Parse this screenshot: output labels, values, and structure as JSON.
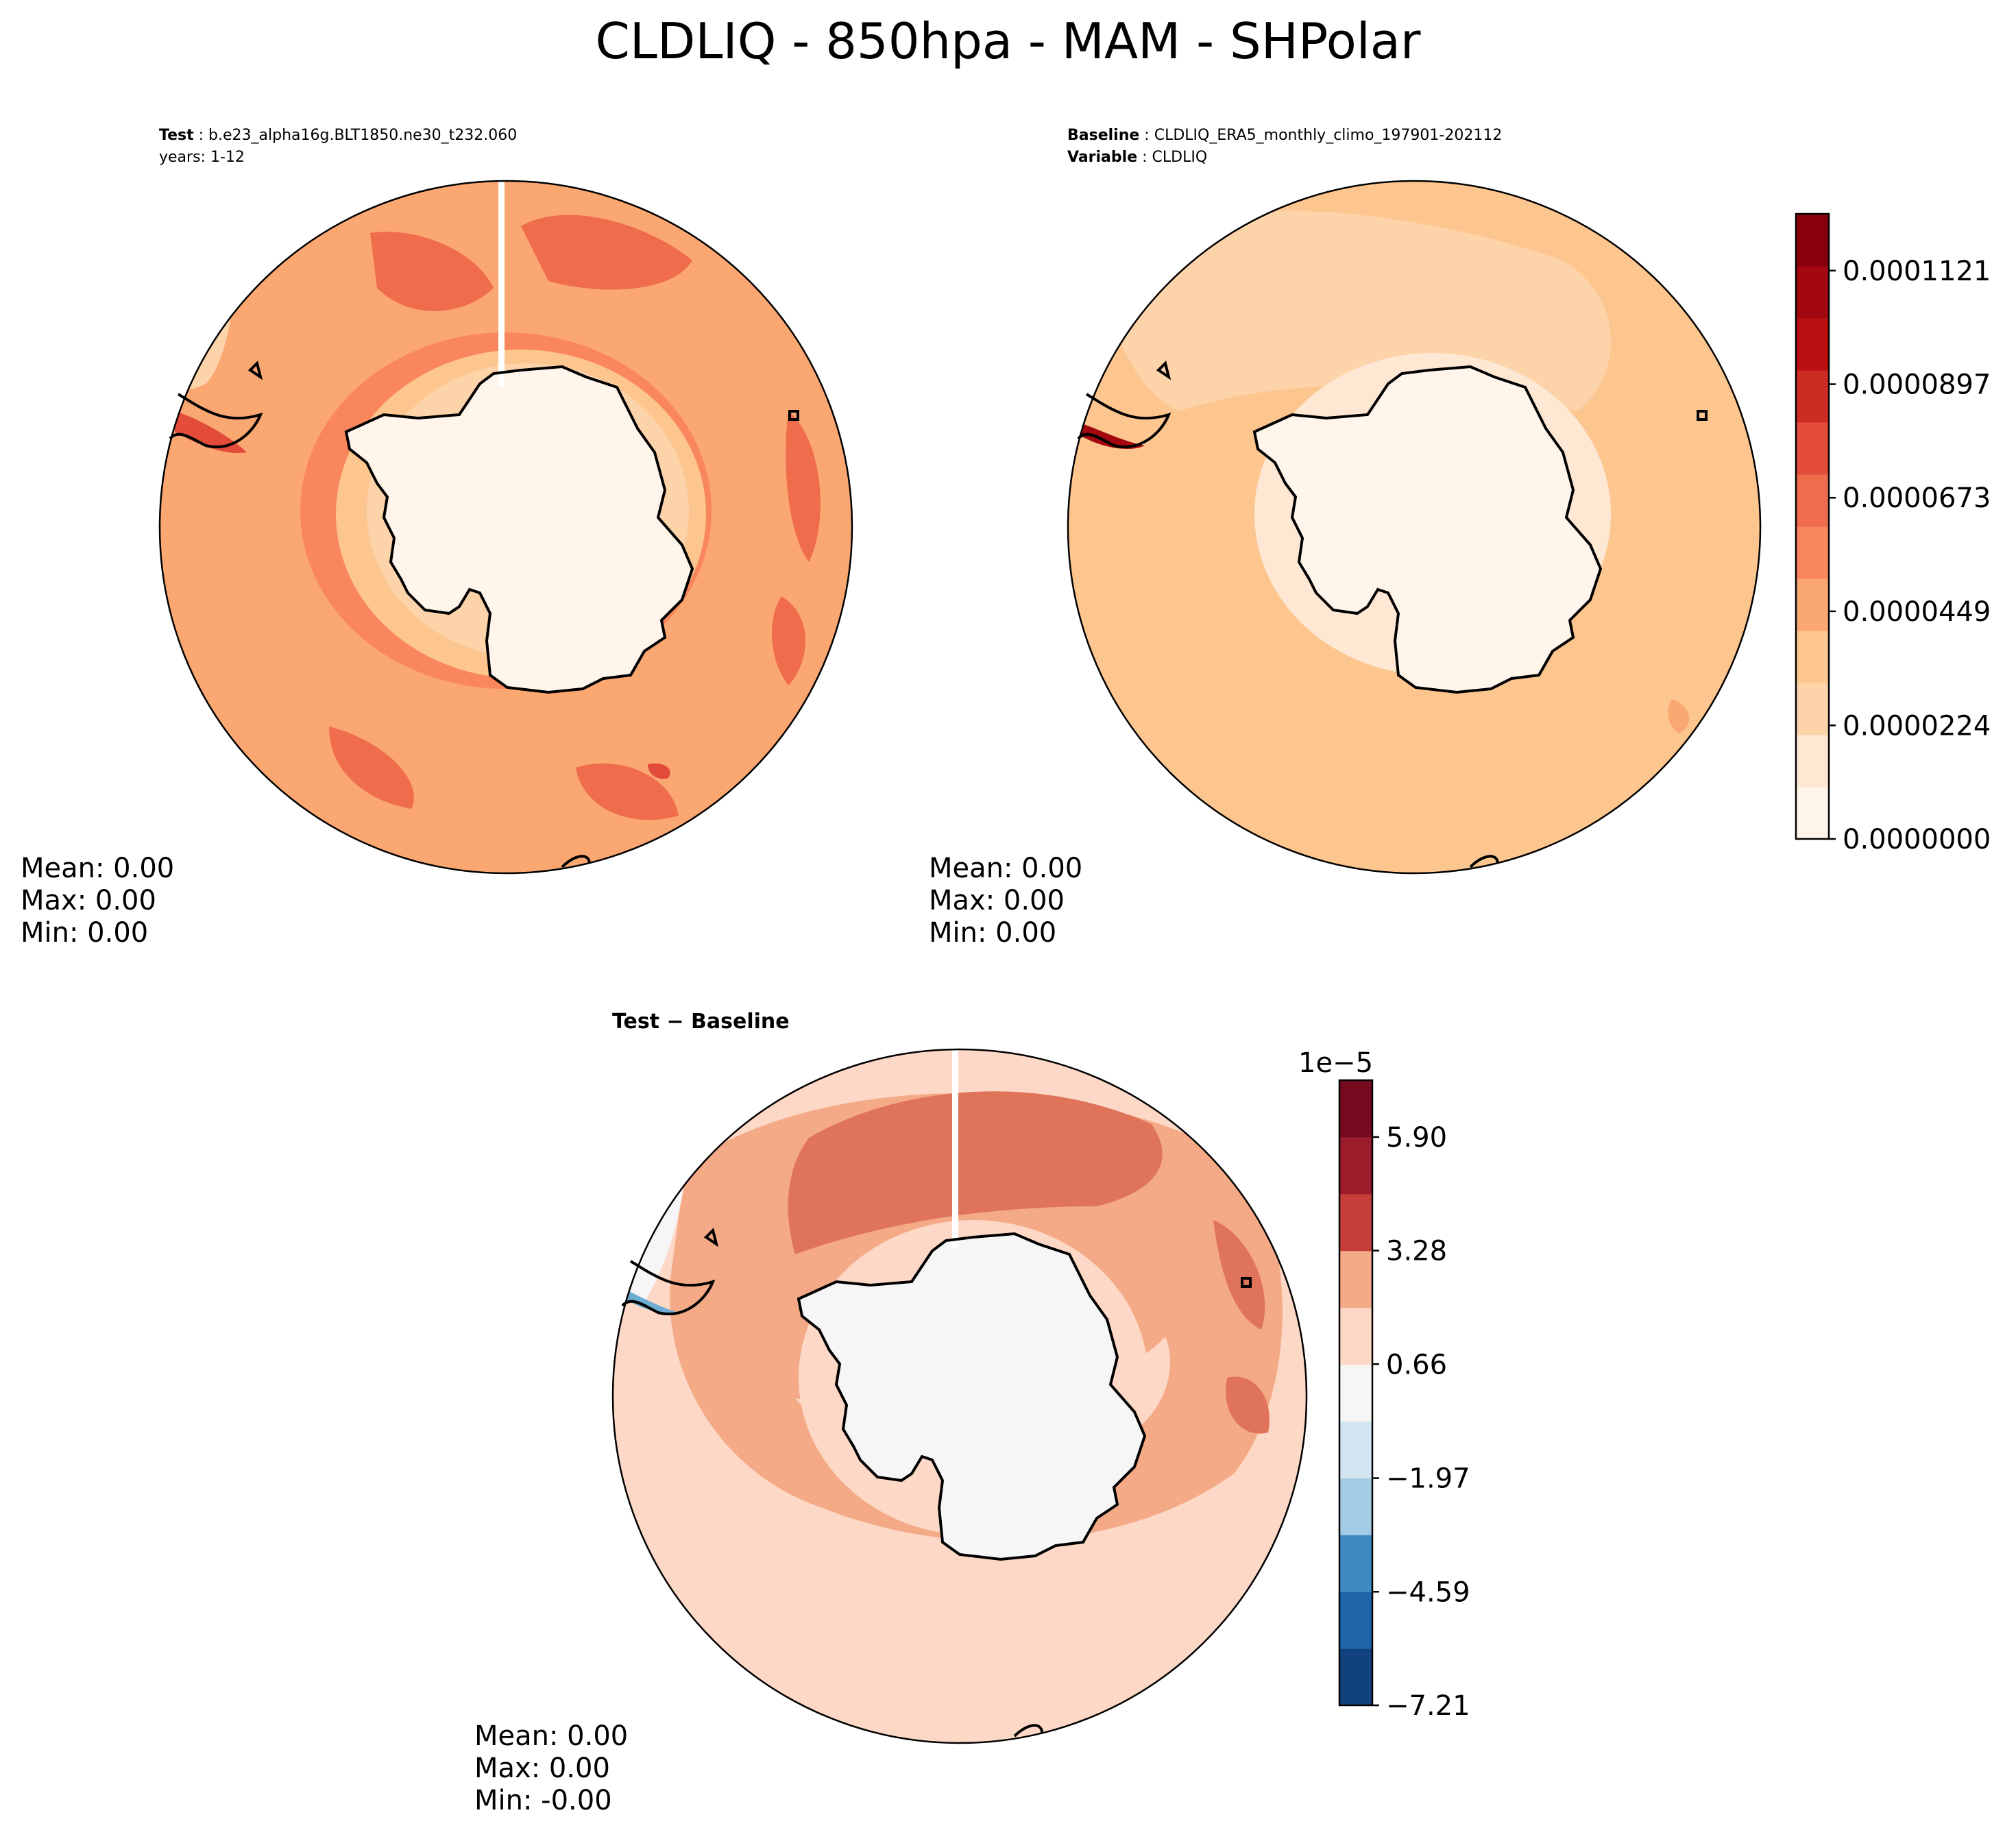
{
  "figure": {
    "title": "CLDLIQ - 850hpa - MAM - SHPolar"
  },
  "colors": {
    "seq_levels": [
      "#fff5eb",
      "#fee7d3",
      "#fdd3aa",
      "#fdc68f",
      "#fba771",
      "#f9865d",
      "#ef6c4d",
      "#e34b3a",
      "#cc2d22",
      "#b90f11",
      "#a3070f",
      "#87000b"
    ],
    "div_levels": [
      "#12427e",
      "#1f66a9",
      "#3d8bc2",
      "#6eadd3",
      "#a3cbe3",
      "#d3e5f1",
      "#f6f6f6",
      "#fdd8c6",
      "#f4aa87",
      "#e0745a",
      "#c53e3a",
      "#9b1c2b",
      "#750a1e"
    ],
    "coast": "#000000",
    "missing": "#ffffff"
  },
  "panels": {
    "test": {
      "label_key": "Test",
      "label_value": "b.e23_alpha16g.BLT1850.ne30_t232.060",
      "years": "years: 1-12",
      "stats": {
        "mean": "Mean:  0.00",
        "max": "Max:  0.00",
        "min": "Min:  0.00"
      }
    },
    "baseline": {
      "label_key": "Baseline",
      "label_value": "CLDLIQ_ERA5_monthly_climo_197901-202112",
      "variable_key": "Variable",
      "variable_value": "CLDLIQ",
      "stats": {
        "mean": "Mean:  0.00",
        "max": "Max:  0.00",
        "min": "Min:  0.00"
      }
    },
    "diff": {
      "label": "Test − Baseline",
      "stats": {
        "mean": "Mean:  0.00",
        "max": "Max:  0.00",
        "min": "Min: -0.00"
      }
    }
  },
  "chart_data": [
    {
      "type": "heatmap",
      "projection": "south-polar-stereographic",
      "name": "Test",
      "title": "b.e23_alpha16g.BLT1850.ne30_t232.060",
      "level_index": {
        "antarctica": 0,
        "coast_band": 2,
        "ice_edge": 3,
        "ocean": 4,
        "ring": 5,
        "storm_track": 6,
        "max_patch": 7
      },
      "mean": 0.0,
      "max": 0.0,
      "min": 0.0
    },
    {
      "type": "heatmap",
      "projection": "south-polar-stereographic",
      "name": "Baseline",
      "title": "CLDLIQ_ERA5_monthly_climo_197901-202112",
      "level_index": {
        "antarctica": 0,
        "ice_edge": 1,
        "ocean": 2,
        "mid": 3,
        "patch": 4,
        "andes": 10
      },
      "mean": 0.0,
      "max": 0.0,
      "min": 0.0
    },
    {
      "type": "heatmap",
      "projection": "south-polar-stereographic",
      "name": "Test - Baseline",
      "level_index": {
        "antarctica": 6,
        "near_zero": 6,
        "low": 7,
        "mid": 8,
        "high": 9,
        "neg": 3
      },
      "mean": 0.0,
      "max": 0.0,
      "min": -0.0
    },
    {
      "type": "colorbar",
      "for": "Test/Baseline",
      "levels": 12,
      "range": [
        0.0,
        0.0001233
      ],
      "tick_values": [
        0.0,
        2.24e-05,
        4.49e-05,
        6.73e-05,
        8.97e-05,
        0.0001121
      ],
      "tick_labels": [
        "0.0000000",
        "0.0000224",
        "0.0000449",
        "0.0000673",
        "0.0000897",
        "0.0001121"
      ]
    },
    {
      "type": "colorbar",
      "for": "Test - Baseline",
      "levels": 11,
      "range": [
        -7.21,
        7.21
      ],
      "scale_label": "1e−5",
      "tick_values": [
        -7.21,
        -4.59,
        -1.97,
        0.66,
        3.28,
        5.9
      ],
      "tick_labels": [
        "−7.21",
        "−4.59",
        "−1.97",
        "0.66",
        "3.28",
        "5.90"
      ]
    }
  ]
}
